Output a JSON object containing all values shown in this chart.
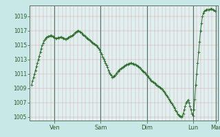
{
  "bg_color": "#c8e8e8",
  "plot_bg_color": "#e0f0f0",
  "line_color": "#2d6e2d",
  "marker_color": "#2d6e2d",
  "ylim": [
    1004.5,
    1020.5
  ],
  "yticks": [
    1005,
    1007,
    1009,
    1011,
    1013,
    1015,
    1017,
    1019
  ],
  "xtick_labels": [
    "Ven",
    "Sam",
    "Dim",
    "Lun",
    "Mar"
  ],
  "vline_day_positions": [
    24,
    72,
    120,
    168,
    192
  ],
  "n_points": 192,
  "x": [
    0,
    1,
    2,
    3,
    4,
    5,
    6,
    7,
    8,
    9,
    10,
    11,
    12,
    13,
    14,
    15,
    16,
    17,
    18,
    19,
    20,
    21,
    22,
    23,
    24,
    25,
    26,
    27,
    28,
    29,
    30,
    31,
    32,
    33,
    34,
    35,
    36,
    37,
    38,
    39,
    40,
    41,
    42,
    43,
    44,
    45,
    46,
    47,
    48,
    49,
    50,
    51,
    52,
    53,
    54,
    55,
    56,
    57,
    58,
    59,
    60,
    61,
    62,
    63,
    64,
    65,
    66,
    67,
    68,
    69,
    70,
    71,
    72,
    73,
    74,
    75,
    76,
    77,
    78,
    79,
    80,
    81,
    82,
    83,
    84,
    85,
    86,
    87,
    88,
    89,
    90,
    91,
    92,
    93,
    94,
    95,
    96,
    97,
    98,
    99,
    100,
    101,
    102,
    103,
    104,
    105,
    106,
    107,
    108,
    109,
    110,
    111,
    112,
    113,
    114,
    115,
    116,
    117,
    118,
    119,
    120,
    121,
    122,
    123,
    124,
    125,
    126,
    127,
    128,
    129,
    130,
    131,
    132,
    133,
    134,
    135,
    136,
    137,
    138,
    139,
    140,
    141,
    142,
    143,
    144,
    145,
    146,
    147,
    148,
    149,
    150,
    151,
    152,
    153,
    154,
    155,
    156,
    157,
    158,
    159,
    160,
    161,
    162,
    163,
    164,
    165,
    166,
    167,
    168,
    169,
    170,
    171,
    172,
    173,
    174,
    175,
    176,
    177,
    178,
    179,
    180,
    181,
    182,
    183,
    184,
    185,
    186,
    187,
    188,
    189,
    190,
    191
  ],
  "y": [
    1009.5,
    1010.0,
    1010.5,
    1011.0,
    1011.5,
    1012.0,
    1012.5,
    1013.0,
    1013.5,
    1014.0,
    1014.5,
    1015.0,
    1015.3,
    1015.6,
    1015.8,
    1016.0,
    1016.1,
    1016.2,
    1016.2,
    1016.3,
    1016.3,
    1016.3,
    1016.2,
    1016.1,
    1016.0,
    1015.9,
    1015.9,
    1016.0,
    1016.0,
    1016.0,
    1016.1,
    1016.1,
    1016.0,
    1015.9,
    1015.9,
    1015.8,
    1015.8,
    1015.9,
    1016.0,
    1016.1,
    1016.2,
    1016.2,
    1016.3,
    1016.4,
    1016.5,
    1016.7,
    1016.8,
    1016.9,
    1017.0,
    1017.0,
    1016.9,
    1016.8,
    1016.7,
    1016.5,
    1016.4,
    1016.3,
    1016.2,
    1016.0,
    1015.9,
    1015.8,
    1015.7,
    1015.6,
    1015.5,
    1015.4,
    1015.3,
    1015.2,
    1015.1,
    1015.0,
    1014.9,
    1014.7,
    1014.5,
    1014.3,
    1014.0,
    1013.7,
    1013.4,
    1013.1,
    1012.8,
    1012.5,
    1012.2,
    1011.9,
    1011.5,
    1011.2,
    1011.0,
    1010.8,
    1010.5,
    1010.6,
    1010.7,
    1010.8,
    1011.0,
    1011.2,
    1011.4,
    1011.5,
    1011.6,
    1011.7,
    1011.8,
    1011.9,
    1012.0,
    1012.1,
    1012.2,
    1012.3,
    1012.3,
    1012.4,
    1012.4,
    1012.5,
    1012.5,
    1012.4,
    1012.4,
    1012.3,
    1012.3,
    1012.2,
    1012.1,
    1012.0,
    1011.9,
    1011.8,
    1011.6,
    1011.5,
    1011.4,
    1011.3,
    1011.2,
    1011.0,
    1010.8,
    1010.7,
    1010.5,
    1010.3,
    1010.1,
    1010.0,
    1009.9,
    1009.8,
    1009.7,
    1009.6,
    1009.5,
    1009.4,
    1009.3,
    1009.2,
    1009.1,
    1009.0,
    1008.9,
    1008.7,
    1008.5,
    1008.3,
    1008.1,
    1007.9,
    1007.7,
    1007.5,
    1007.3,
    1007.1,
    1006.9,
    1006.7,
    1006.4,
    1006.2,
    1005.9,
    1005.7,
    1005.5,
    1005.3,
    1005.2,
    1005.1,
    1005.0,
    1005.2,
    1005.5,
    1006.0,
    1006.5,
    1007.0,
    1007.2,
    1007.4,
    1007.0,
    1006.5,
    1006.0,
    1005.5,
    1005.2,
    1006.0,
    1007.5,
    1009.5,
    1011.0,
    1012.5,
    1014.0,
    1015.5,
    1017.0,
    1018.0,
    1019.0,
    1019.5,
    1019.7,
    1019.8,
    1019.9,
    1019.9,
    1019.9,
    1019.9,
    1020.0,
    1020.0,
    1020.0,
    1019.9,
    1019.8,
    1019.7
  ]
}
